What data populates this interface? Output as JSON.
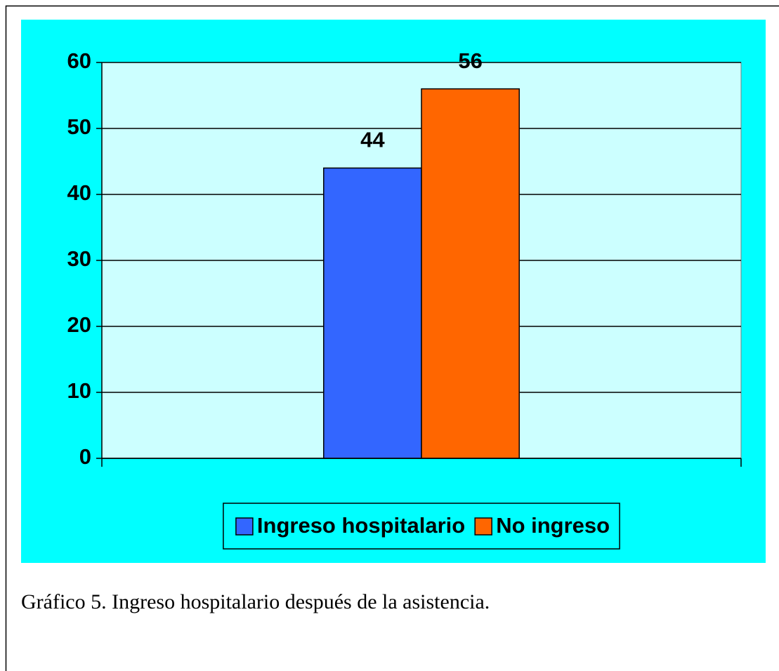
{
  "chart_data": {
    "type": "bar",
    "categories": [
      null
    ],
    "series": [
      {
        "name": "Ingreso hospitalario",
        "color": "#3366ff",
        "values": [
          44
        ]
      },
      {
        "name": "No ingreso",
        "color": "#ff6600",
        "values": [
          56
        ]
      }
    ],
    "ylim": [
      0,
      60
    ],
    "yticks": [
      0,
      10,
      20,
      30,
      40,
      50,
      60
    ],
    "grid": true,
    "legend": "bottom",
    "caption": "Gráfico 5. Ingreso hospitalario después de la asistencia."
  }
}
